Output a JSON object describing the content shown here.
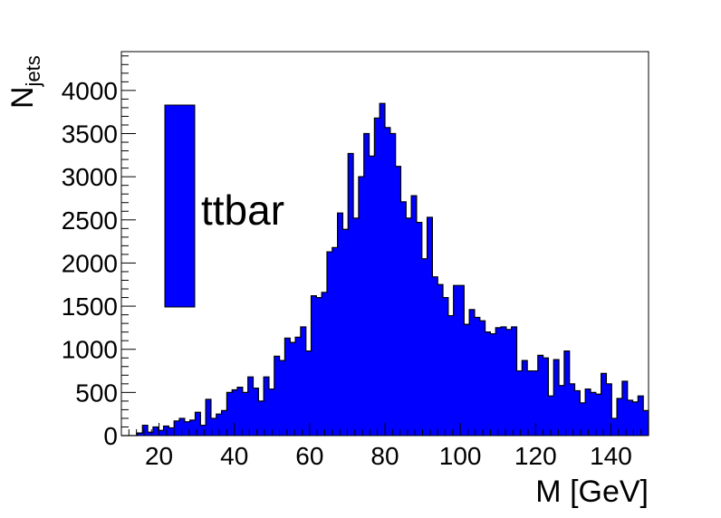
{
  "chart_data": {
    "type": "bar",
    "subtype": "histogram",
    "xlabel": "M [GeV]",
    "ylabel": "N",
    "ylabel_subscript": "jets",
    "xlim": [
      10,
      150
    ],
    "ylim": [
      0,
      4450
    ],
    "bin_width": 1.4,
    "x_ticks": [
      20,
      40,
      60,
      80,
      100,
      120,
      140
    ],
    "y_ticks": [
      0,
      500,
      1000,
      1500,
      2000,
      2500,
      3000,
      3500,
      4000
    ],
    "bar_color": "#0000ff",
    "grid": false,
    "legend_position": "top-left",
    "series": [
      {
        "name": "ttbar",
        "values": [
          0,
          0,
          0,
          30,
          120,
          40,
          100,
          60,
          110,
          90,
          170,
          200,
          160,
          180,
          270,
          120,
          420,
          200,
          250,
          290,
          500,
          530,
          560,
          500,
          680,
          550,
          400,
          680,
          540,
          920,
          870,
          1130,
          1080,
          1140,
          1260,
          980,
          1620,
          1600,
          1660,
          2130,
          2180,
          2580,
          2390,
          3270,
          2520,
          3000,
          3500,
          3240,
          3680,
          3850,
          3570,
          3500,
          3120,
          2710,
          2520,
          2780,
          2470,
          2050,
          2530,
          1840,
          1750,
          1600,
          1390,
          1740,
          1740,
          1290,
          1460,
          1370,
          1330,
          1200,
          1180,
          1250,
          1260,
          1230,
          1260,
          750,
          870,
          750,
          750,
          930,
          900,
          460,
          880,
          580,
          980,
          600,
          520,
          380,
          540,
          500,
          480,
          720,
          600,
          200,
          430,
          630,
          410,
          390,
          460,
          290
        ]
      }
    ]
  }
}
